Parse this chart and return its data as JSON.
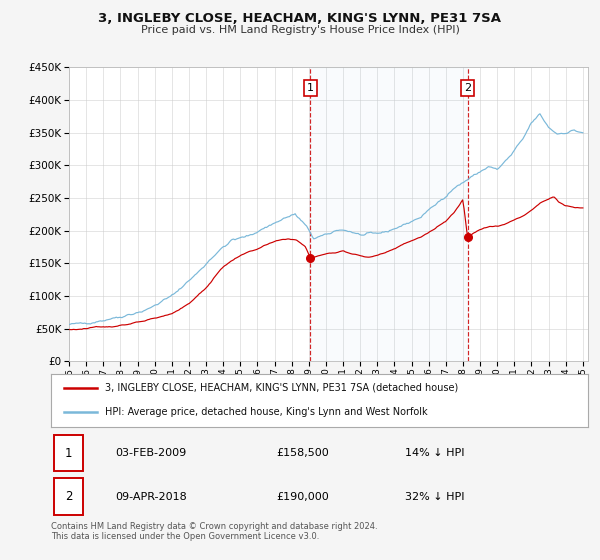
{
  "title": "3, INGLEBY CLOSE, HEACHAM, KING'S LYNN, PE31 7SA",
  "subtitle": "Price paid vs. HM Land Registry's House Price Index (HPI)",
  "hpi_color": "#7ab8d9",
  "price_color": "#cc0000",
  "background_color": "#f5f5f5",
  "plot_bg_color": "#ffffff",
  "ylim": [
    0,
    450000
  ],
  "yticks": [
    0,
    50000,
    100000,
    150000,
    200000,
    250000,
    300000,
    350000,
    400000,
    450000
  ],
  "xlim_start": 1995.0,
  "xlim_end": 2025.3,
  "xticks": [
    1995,
    1996,
    1997,
    1998,
    1999,
    2000,
    2001,
    2002,
    2003,
    2004,
    2005,
    2006,
    2007,
    2008,
    2009,
    2010,
    2011,
    2012,
    2013,
    2014,
    2015,
    2016,
    2017,
    2018,
    2019,
    2020,
    2021,
    2022,
    2023,
    2024,
    2025
  ],
  "sale1_x": 2009.09,
  "sale1_y": 158500,
  "sale2_x": 2018.27,
  "sale2_y": 190000,
  "legend_line1": "3, INGLEBY CLOSE, HEACHAM, KING'S LYNN, PE31 7SA (detached house)",
  "legend_line2": "HPI: Average price, detached house, King's Lynn and West Norfolk",
  "table_row1_num": "1",
  "table_row1_date": "03-FEB-2009",
  "table_row1_price": "£158,500",
  "table_row1_hpi": "14% ↓ HPI",
  "table_row2_num": "2",
  "table_row2_date": "09-APR-2018",
  "table_row2_price": "£190,000",
  "table_row2_hpi": "32% ↓ HPI",
  "footer": "Contains HM Land Registry data © Crown copyright and database right 2024.\nThis data is licensed under the Open Government Licence v3.0."
}
